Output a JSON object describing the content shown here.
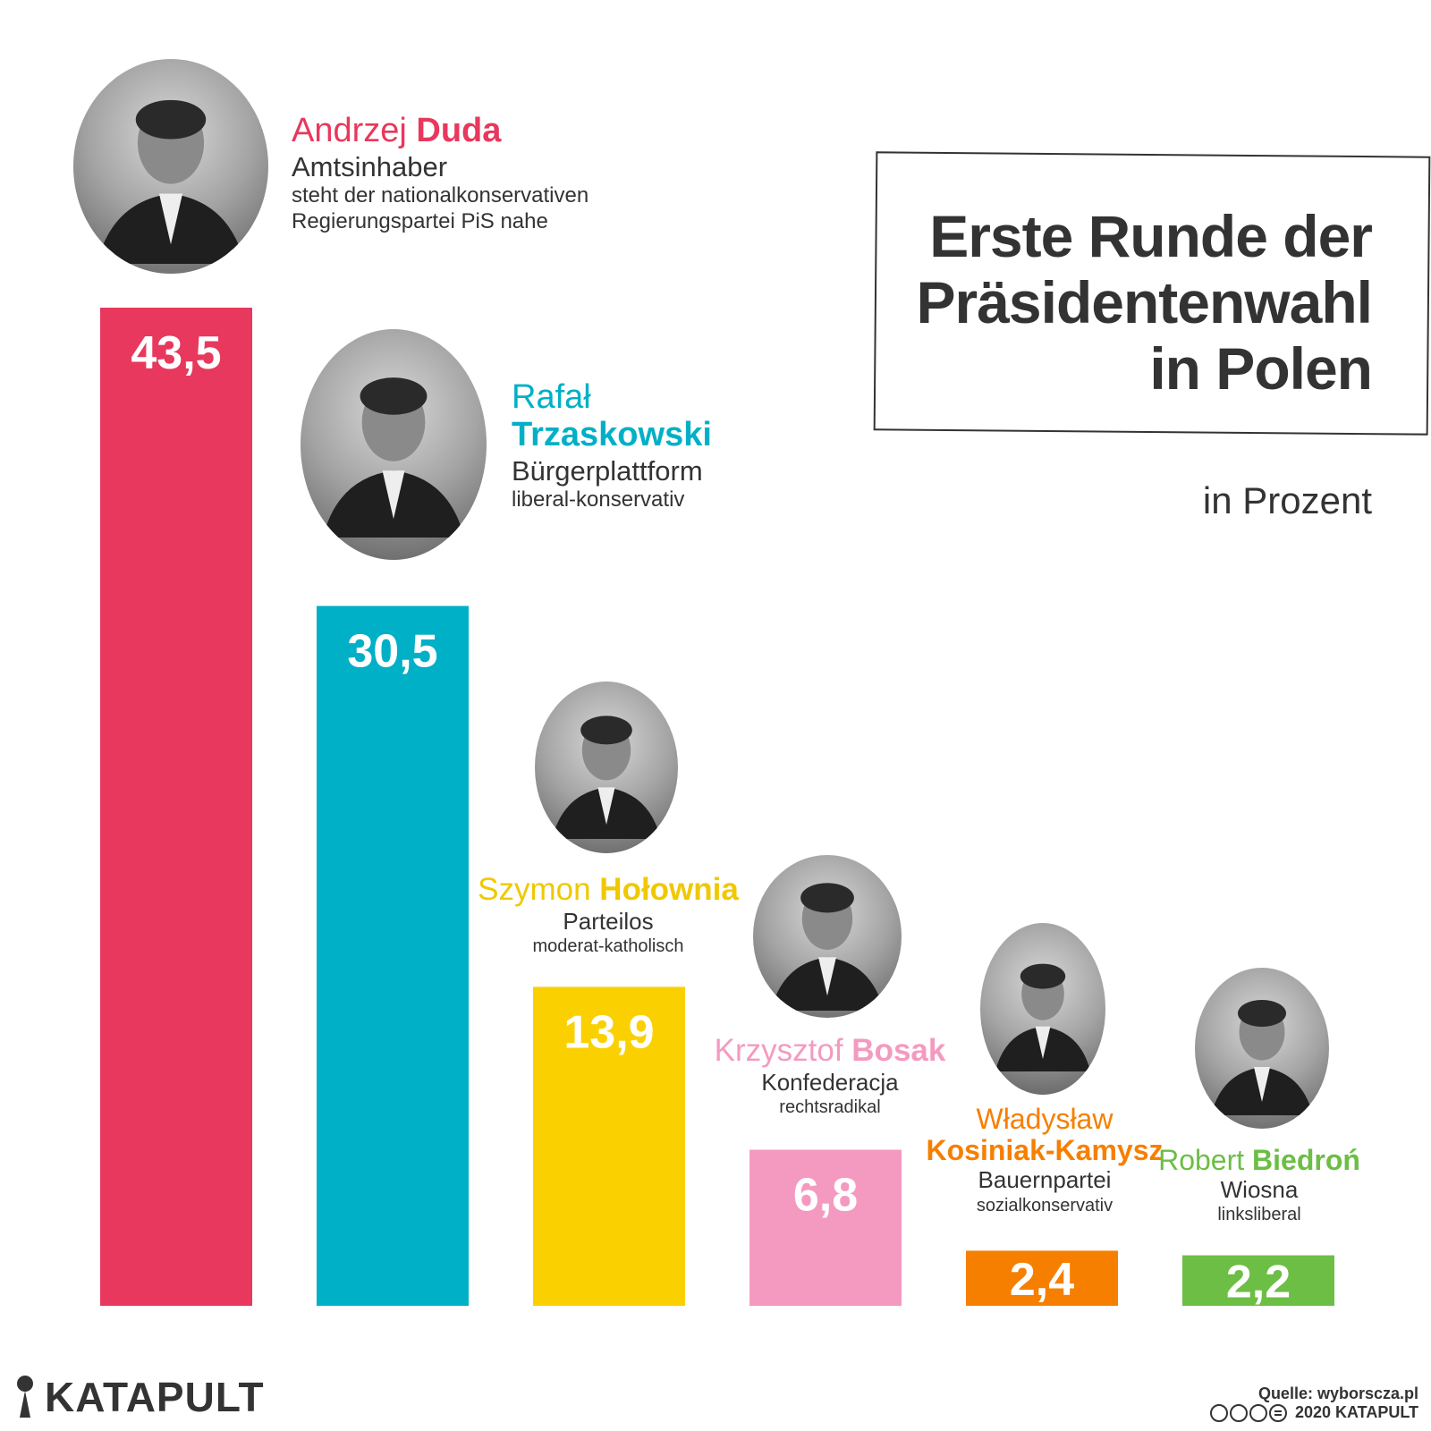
{
  "title": "Erste Runde der Präsidentenwahl in Polen",
  "unit": "in Prozent",
  "chart_data": {
    "type": "bar",
    "title": "Erste Runde der Präsidentenwahl in Polen",
    "ylabel": "in Prozent",
    "ylim": [
      0,
      43.5
    ],
    "categories": [
      "Andrzej Duda",
      "Rafał Trzaskowski",
      "Szymon Hołownia",
      "Krzysztof Bosak",
      "Władysław Kosiniak-Kamysz",
      "Robert Biedroń"
    ],
    "values": [
      43.5,
      30.5,
      13.9,
      6.8,
      2.4,
      2.2
    ],
    "value_labels": [
      "43,5",
      "30,5",
      "13,9",
      "6,8",
      "2,4",
      "2,2"
    ],
    "colors": [
      "#e8385d",
      "#00b0c7",
      "#fbd000",
      "#f49ac1",
      "#f77f00",
      "#6cbe45"
    ]
  },
  "candidates": [
    {
      "first": "Andrzej",
      "last": "Duda",
      "party": "Amtsinhaber",
      "desc": "steht der nationalkonservativen",
      "desc2": "Regierungspartei PiS nahe",
      "color": "#e8385d"
    },
    {
      "first": "Rafał",
      "last": "Trzaskowski",
      "party": "Bürgerplattform",
      "desc": "liberal-konservativ",
      "color": "#00b0c7"
    },
    {
      "first": "Szymon",
      "last": "Hołownia",
      "party": "Parteilos",
      "desc": "moderat-katholisch",
      "color": "#f0c800"
    },
    {
      "first": "Krzysztof",
      "last": "Bosak",
      "party": "Konfederacja",
      "desc": "rechtsradikal",
      "color": "#f49ac1"
    },
    {
      "first": "Władysław",
      "last": "Kosiniak-Kamysz",
      "party": "Bauernpartei",
      "desc": "sozialkonservativ",
      "color": "#f77f00"
    },
    {
      "first": "Robert",
      "last": "Biedroń",
      "party": "Wiosna",
      "desc": "linksliberal",
      "color": "#6cbe45"
    }
  ],
  "footer": {
    "logo": "KATAPULT",
    "source": "Quelle: wyborscza.pl",
    "copyright": "2020 KATAPULT"
  }
}
